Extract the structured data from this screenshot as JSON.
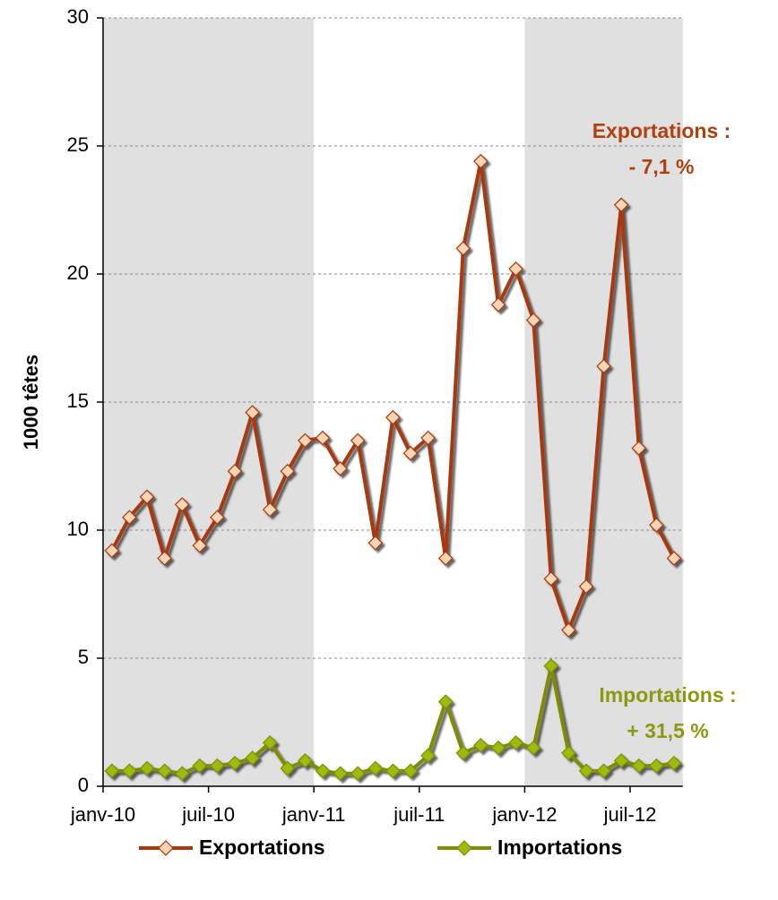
{
  "chart_data": {
    "type": "line",
    "y_label": "1000 têtes",
    "categories": [
      "janv-10",
      null,
      null,
      null,
      null,
      null,
      "juil-10",
      null,
      null,
      null,
      null,
      null,
      "janv-11",
      null,
      null,
      null,
      null,
      null,
      "juil-11",
      null,
      null,
      null,
      null,
      null,
      "janv-12",
      null,
      null,
      null,
      null,
      null,
      "juil-12",
      null,
      null
    ],
    "series": [
      {
        "name": "Exportations",
        "color": "#a8380a",
        "marker_color": "#fcd5b4",
        "values": [
          9.2,
          10.5,
          11.3,
          8.9,
          11.0,
          9.4,
          10.5,
          12.3,
          14.6,
          10.8,
          12.3,
          13.5,
          13.6,
          12.4,
          13.5,
          9.5,
          14.4,
          13.0,
          13.6,
          8.9,
          21.0,
          24.4,
          18.8,
          20.2,
          18.2,
          8.1,
          6.1,
          7.8,
          16.4,
          22.7,
          13.2,
          10.2,
          8.9
        ]
      },
      {
        "name": "Importations",
        "color": "#7f8c00",
        "marker_color": "#9bbb0f",
        "values": [
          0.6,
          0.6,
          0.7,
          0.6,
          0.5,
          0.8,
          0.8,
          0.9,
          1.1,
          1.7,
          0.7,
          1.0,
          0.6,
          0.5,
          0.5,
          0.7,
          0.6,
          0.6,
          1.2,
          3.3,
          1.3,
          1.6,
          1.5,
          1.7,
          1.5,
          4.7,
          1.3,
          0.6,
          0.6,
          1.0,
          0.8,
          0.8,
          0.9
        ]
      }
    ],
    "annotations": [
      {
        "lines": [
          "Exportations :",
          "- 7,1 %"
        ],
        "color": "#b0400f"
      },
      {
        "lines": [
          "Importations :",
          "+ 31,5 %"
        ],
        "color": "#8a9a10"
      }
    ],
    "ylim": [
      0,
      30
    ],
    "yticks": [
      0,
      5,
      10,
      15,
      20,
      25,
      30
    ],
    "grid": true,
    "legend": "bottom"
  }
}
